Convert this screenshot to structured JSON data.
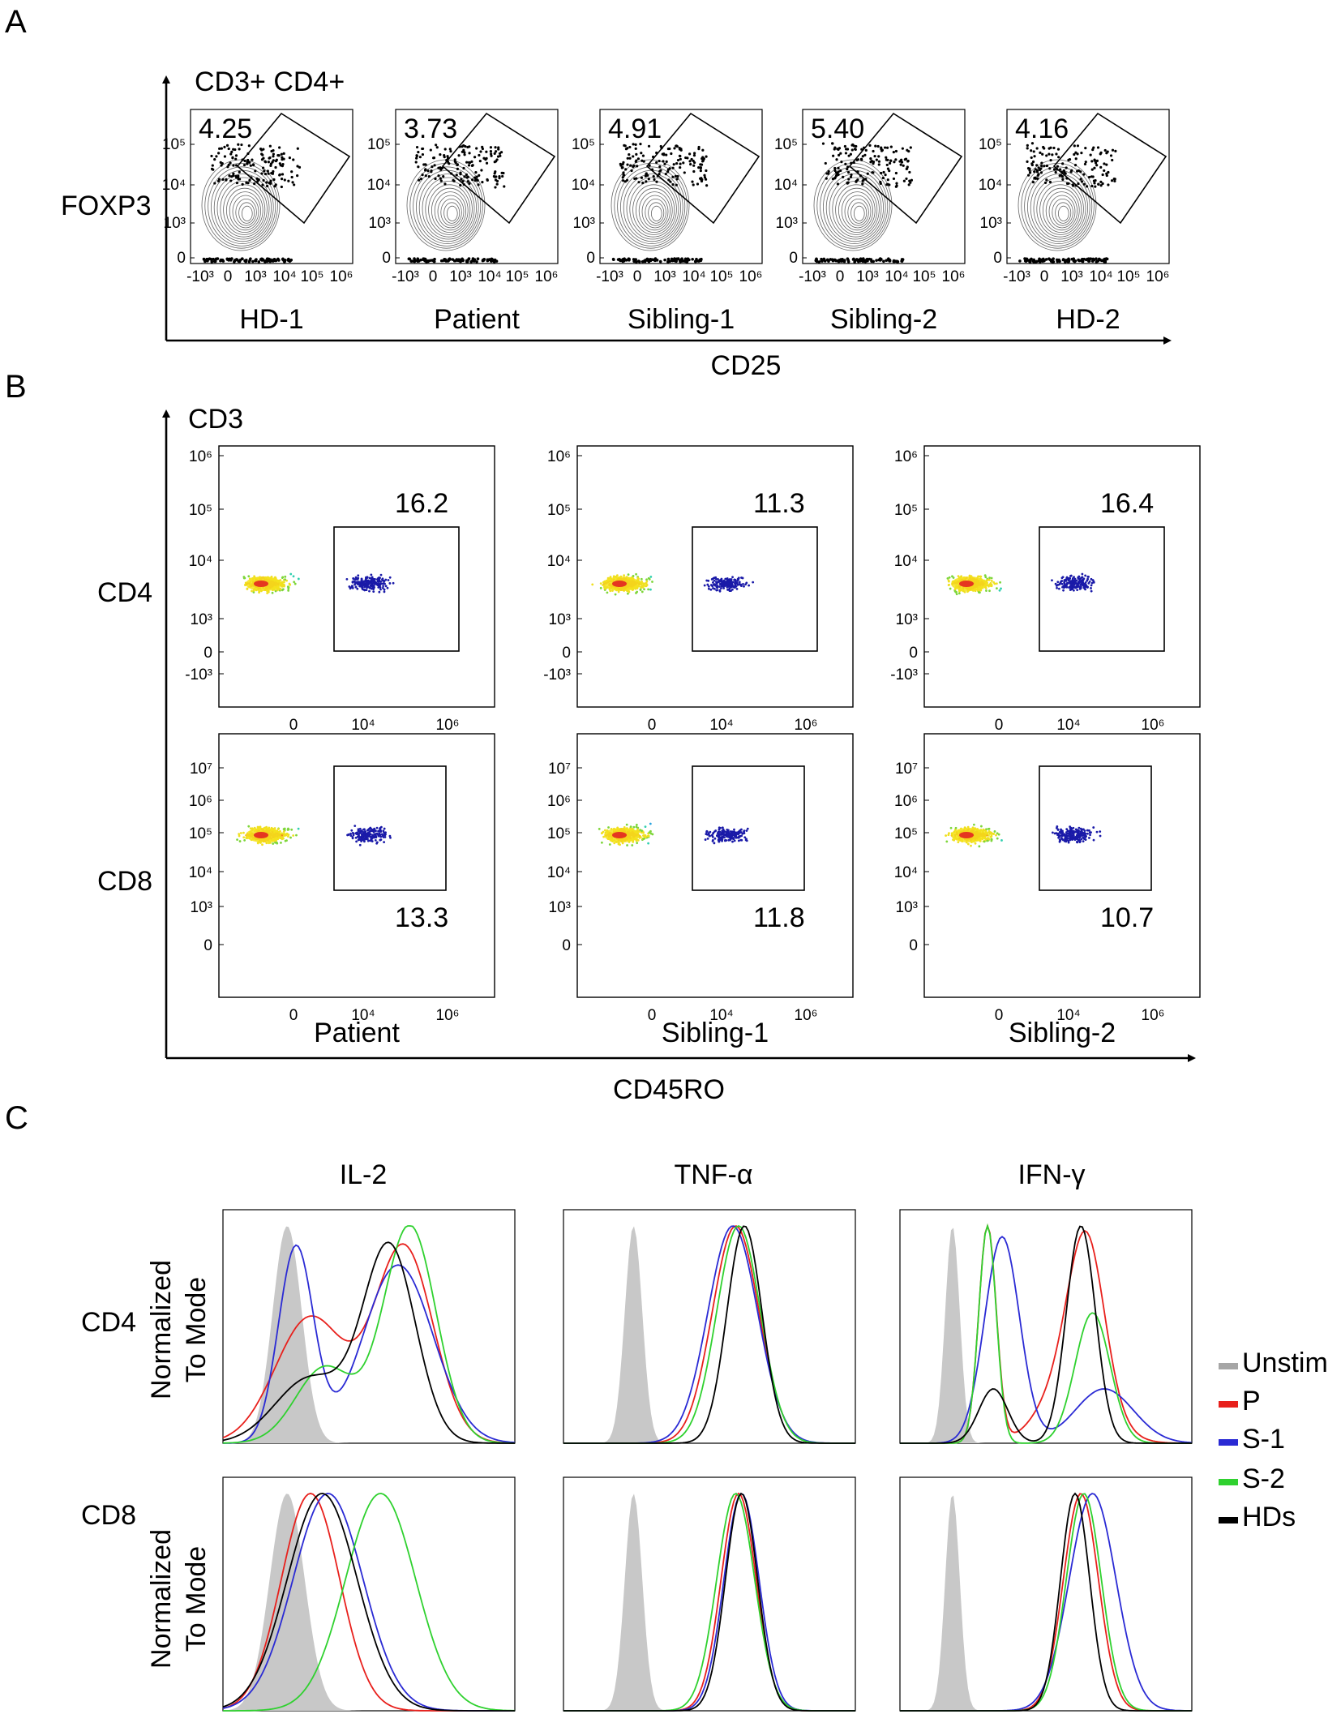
{
  "panels": {
    "a": "A",
    "b": "B",
    "c": "C"
  },
  "panel_a": {
    "gate_label": "CD3+ CD4+",
    "y_label": "FOXP3",
    "x_label": "CD25",
    "y_ticks": [
      "10⁵",
      "10⁴",
      "10³",
      "0"
    ],
    "x_ticks": [
      "-10³",
      "0",
      "10³",
      "10⁴",
      "10⁵",
      "10⁶"
    ],
    "plots": [
      {
        "sample": "HD-1",
        "percent": "4.25"
      },
      {
        "sample": "Patient",
        "percent": "3.73"
      },
      {
        "sample": "Sibling-1",
        "percent": "4.91"
      },
      {
        "sample": "Sibling-2",
        "percent": "5.40"
      },
      {
        "sample": "HD-2",
        "percent": "4.16"
      }
    ]
  },
  "panel_b": {
    "y_label_top": "CD3",
    "x_label": "CD45RO",
    "rows": [
      {
        "label": "CD4",
        "y_ticks": [
          "10⁶",
          "10⁵",
          "10⁴",
          "10³",
          "0",
          "-10³"
        ]
      },
      {
        "label": "CD8",
        "y_ticks": [
          "10⁷",
          "10⁶",
          "10⁵",
          "10⁴",
          "10³",
          "0"
        ]
      }
    ],
    "x_ticks": [
      "0",
      "10⁴",
      "10⁶"
    ],
    "samples": [
      "Patient",
      "Sibling-1",
      "Sibling-2"
    ],
    "values": {
      "CD4": [
        "16.2",
        "11.3",
        "16.4"
      ],
      "CD8": [
        "13.3",
        "11.8",
        "10.7"
      ]
    }
  },
  "panel_c": {
    "columns": [
      "IL-2",
      "TNF-α",
      "IFN-γ"
    ],
    "rows": [
      "CD4",
      "CD8"
    ],
    "y_label_1": "Normalized",
    "y_label_2": "To Mode",
    "legend": [
      {
        "label": "Unstim",
        "color": "#a6a6a6"
      },
      {
        "label": "P",
        "color": "#e8201c"
      },
      {
        "label": "S-1",
        "color": "#2a2ad4"
      },
      {
        "label": "S-2",
        "color": "#2fd12f"
      },
      {
        "label": "HDs",
        "color": "#000000"
      }
    ]
  },
  "chart_data": [
    {
      "type": "scatter",
      "title": "CD3+ CD4+",
      "xlabel": "CD25",
      "ylabel": "FOXP3",
      "categories": [
        "HD-1",
        "Patient",
        "Sibling-1",
        "Sibling-2",
        "HD-2"
      ],
      "values": [
        4.25,
        3.73,
        4.91,
        5.4,
        4.16
      ]
    },
    {
      "type": "scatter",
      "xlabel": "CD45RO",
      "ylabel": "CD3",
      "categories": [
        "Patient",
        "Sibling-1",
        "Sibling-2"
      ],
      "series": [
        {
          "name": "CD4",
          "values": [
            16.2,
            11.3,
            16.4
          ]
        },
        {
          "name": "CD8",
          "values": [
            13.3,
            11.8,
            10.7
          ]
        }
      ]
    },
    {
      "type": "line",
      "ylabel": "Normalized To Mode",
      "columns": [
        "IL-2",
        "TNF-α",
        "IFN-γ"
      ],
      "rows": [
        "CD4",
        "CD8"
      ],
      "series_names": [
        "Unstim",
        "P",
        "S-1",
        "S-2",
        "HDs"
      ]
    }
  ]
}
